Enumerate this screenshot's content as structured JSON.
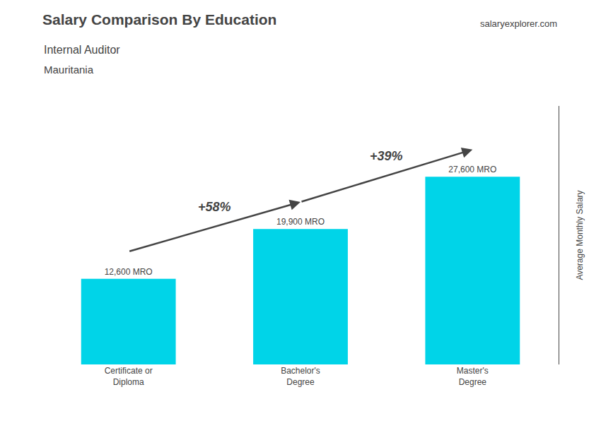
{
  "chart_data": {
    "type": "bar",
    "title": "Salary Comparison By Education",
    "subtitle": "Internal Auditor",
    "ylabel": "Average Monthly Salary",
    "categories": [
      "Certificate or\nDiploma",
      "Bachelor's\nDegree",
      "Master's\nDegree"
    ],
    "values": [
      12600,
      19900,
      27600
    ],
    "value_labels": [
      "12,600 MRO",
      "19,900 MRO",
      "27,600 MRO"
    ],
    "data_labels": true,
    "color": "#00d4e8",
    "ylim": [
      0,
      38000
    ],
    "tick_labels": "x",
    "grid": false,
    "annotations": [
      {
        "text": "Mauritania"
      },
      {
        "text": "salaryexplorer.com"
      },
      {
        "text": "+58%",
        "from": "Certificate or\nDiploma",
        "to": "Bachelor's\nDegree"
      },
      {
        "text": "+39%",
        "from": "Bachelor's\nDegree",
        "to": "Master's\nDegree"
      }
    ]
  }
}
